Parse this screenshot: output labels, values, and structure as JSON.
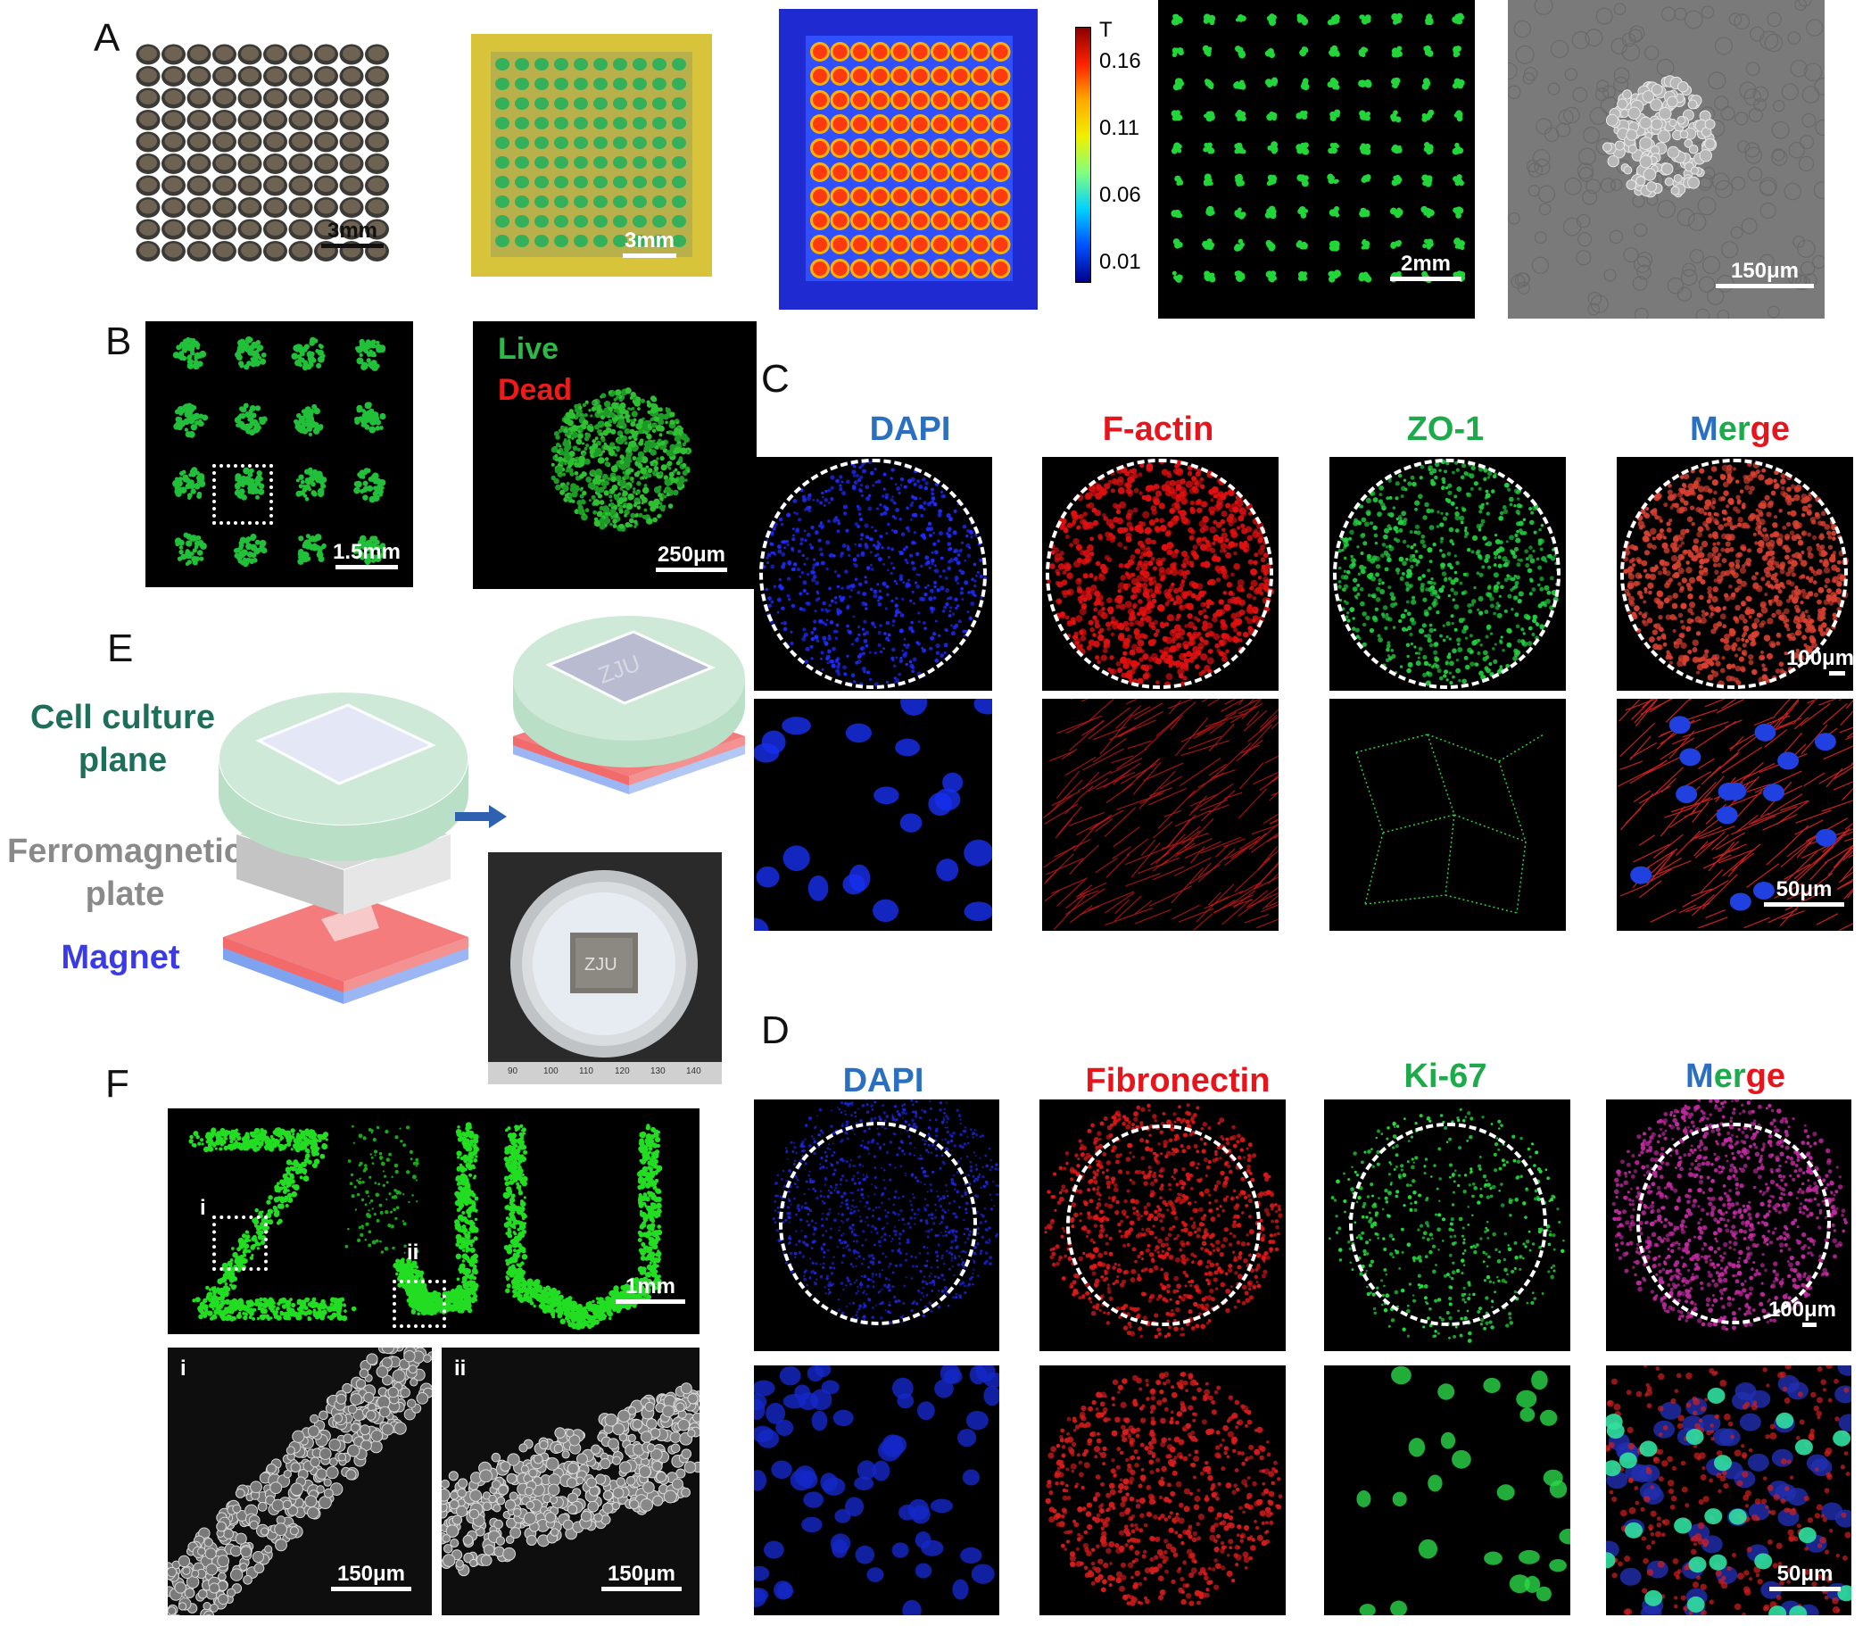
{
  "panels": {
    "A": {
      "letter": "A",
      "scalebars": [
        "3mm",
        "3mm",
        "2mm",
        "150μm"
      ],
      "colorbar": {
        "title": "T",
        "ticks": [
          "0.16",
          "0.11",
          "0.06",
          "0.01"
        ]
      }
    },
    "B": {
      "letter": "B",
      "scalebars": [
        "1.5mm",
        "250μm"
      ],
      "legend": {
        "live": "Live",
        "dead": "Dead"
      }
    },
    "C": {
      "letter": "C",
      "columns": [
        "DAPI",
        "F-actin",
        "ZO-1"
      ],
      "merge": {
        "m": "M",
        "er": "er",
        "ge": "ge"
      },
      "scalebars": [
        "100μm",
        "50μm"
      ]
    },
    "D": {
      "letter": "D",
      "columns": [
        "DAPI",
        "Fibronectin",
        "Ki-67"
      ],
      "merge": {
        "m": "M",
        "er": "er",
        "ge": "ge"
      },
      "scalebars": [
        "100μm",
        "50μm"
      ]
    },
    "E": {
      "letter": "E",
      "layers": [
        "Cell culture plane",
        "Ferromagnetic plate",
        "Magnet"
      ],
      "plate_text": "ZJU",
      "ruler_ticks": [
        "90",
        "100",
        "110",
        "120",
        "130",
        "140"
      ]
    },
    "F": {
      "letter": "F",
      "letters": "ZJU",
      "insets": [
        "i",
        "ii"
      ],
      "scalebars": [
        "1mm",
        "150μm",
        "150μm"
      ]
    }
  },
  "colors": {
    "dapi_blue": "#2a6fc0",
    "factin_red": "#e8141b",
    "zo1_green": "#1daa4a",
    "cell_culture_text": "#1f6e5a",
    "ferromagnetic_text": "#8a8a8a",
    "magnet_text": "#3a3ae8"
  }
}
